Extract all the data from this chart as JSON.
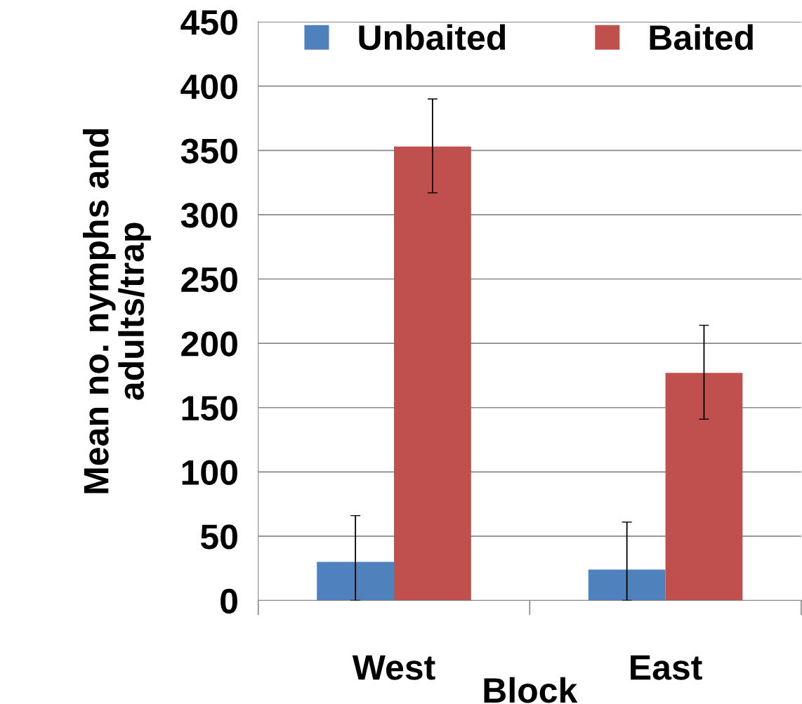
{
  "chart_data": {
    "type": "bar",
    "xlabel": "Block",
    "ylabel": "Mean no. nymphs and\nadults/trap",
    "categories": [
      "West",
      "East"
    ],
    "series": [
      {
        "name": "Unbaited",
        "color": "#4f81bd",
        "values": [
          30,
          24
        ],
        "errors": [
          [
            0,
            66
          ],
          [
            0,
            61
          ]
        ]
      },
      {
        "name": "Baited",
        "color": "#c0504d",
        "values": [
          353,
          177
        ],
        "errors": [
          [
            317,
            390
          ],
          [
            141,
            214
          ]
        ]
      }
    ],
    "ylim": [
      0,
      450
    ],
    "yticks": [
      0,
      50,
      100,
      150,
      200,
      250,
      300,
      350,
      400,
      450
    ],
    "grid": "y",
    "legend": "top"
  }
}
